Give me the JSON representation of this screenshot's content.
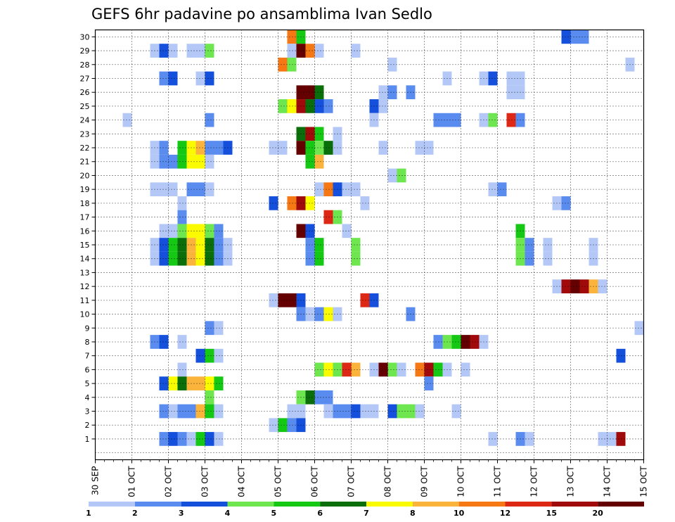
{
  "chart_data": {
    "type": "heatmap",
    "title": "GEFS 6hr padavine po ansamblima Ivan Sedlo",
    "ylabels": [
      "1",
      "2",
      "3",
      "4",
      "5",
      "6",
      "7",
      "8",
      "9",
      "10",
      "11",
      "12",
      "13",
      "14",
      "15",
      "16",
      "17",
      "18",
      "19",
      "20",
      "21",
      "22",
      "23",
      "24",
      "25",
      "26",
      "27",
      "28",
      "29",
      "30"
    ],
    "xlabels": [
      "30 SEP",
      "01 OCT",
      "02 OCT",
      "03 OCT",
      "04 OCT",
      "05 OCT",
      "06 OCT",
      "07 OCT",
      "08 OCT",
      "09 OCT",
      "10 OCT",
      "11 OCT",
      "12 OCT",
      "13 OCT",
      "14 OCT",
      "15 OCT"
    ],
    "x_steps": 60,
    "y_rows": 31,
    "legend": {
      "labels": [
        "1",
        "2",
        "3",
        "4",
        "5",
        "6",
        "7",
        "8",
        "10",
        "12",
        "15",
        "20"
      ],
      "colors": [
        "#b4c8f8",
        "#5a8cf0",
        "#1450dc",
        "#6ee650",
        "#14c814",
        "#0a6e0a",
        "#fafa00",
        "#fab43c",
        "#f57814",
        "#dc2814",
        "#a00a0a",
        "#640000"
      ]
    },
    "colors": [
      "#b4c8f8",
      "#5a8cf0",
      "#1450dc",
      "#6ee650",
      "#14c814",
      "#0a6e0a",
      "#fafa00",
      "#fab43c",
      "#f57814",
      "#dc2814",
      "#a00a0a",
      "#640000"
    ],
    "cells": [
      [
        30,
        21,
        8
      ],
      [
        30,
        22,
        4
      ],
      [
        30,
        51,
        2
      ],
      [
        30,
        52,
        1
      ],
      [
        30,
        53,
        1
      ],
      [
        29,
        6,
        0
      ],
      [
        29,
        7,
        2
      ],
      [
        29,
        8,
        0
      ],
      [
        29,
        10,
        0
      ],
      [
        29,
        11,
        0
      ],
      [
        29,
        12,
        3
      ],
      [
        29,
        21,
        0
      ],
      [
        29,
        22,
        11
      ],
      [
        29,
        23,
        8
      ],
      [
        29,
        24,
        0
      ],
      [
        29,
        28,
        0
      ],
      [
        28,
        20,
        8
      ],
      [
        28,
        21,
        3
      ],
      [
        28,
        32,
        0
      ],
      [
        28,
        58,
        0
      ],
      [
        27,
        7,
        1
      ],
      [
        27,
        8,
        2
      ],
      [
        27,
        11,
        0
      ],
      [
        27,
        12,
        2
      ],
      [
        27,
        38,
        0
      ],
      [
        27,
        42,
        0
      ],
      [
        27,
        43,
        2
      ],
      [
        27,
        45,
        0
      ],
      [
        27,
        46,
        0
      ],
      [
        26,
        22,
        11
      ],
      [
        26,
        23,
        11
      ],
      [
        26,
        24,
        5
      ],
      [
        26,
        31,
        0
      ],
      [
        26,
        32,
        1
      ],
      [
        26,
        34,
        1
      ],
      [
        26,
        45,
        0
      ],
      [
        26,
        46,
        0
      ],
      [
        25,
        20,
        3
      ],
      [
        25,
        21,
        6
      ],
      [
        25,
        22,
        10
      ],
      [
        25,
        23,
        5
      ],
      [
        25,
        24,
        2
      ],
      [
        25,
        25,
        1
      ],
      [
        25,
        30,
        2
      ],
      [
        25,
        31,
        0
      ],
      [
        24,
        3,
        0
      ],
      [
        24,
        12,
        1
      ],
      [
        24,
        37,
        1
      ],
      [
        24,
        38,
        1
      ],
      [
        24,
        39,
        1
      ],
      [
        24,
        42,
        0
      ],
      [
        24,
        43,
        3
      ],
      [
        24,
        45,
        9
      ],
      [
        24,
        46,
        1
      ],
      [
        24,
        30,
        0
      ],
      [
        23,
        22,
        5
      ],
      [
        23,
        23,
        10
      ],
      [
        23,
        24,
        4
      ],
      [
        23,
        26,
        0
      ],
      [
        22,
        6,
        0
      ],
      [
        22,
        7,
        1
      ],
      [
        22,
        9,
        4
      ],
      [
        22,
        10,
        6
      ],
      [
        22,
        11,
        7
      ],
      [
        22,
        12,
        1
      ],
      [
        22,
        13,
        1
      ],
      [
        22,
        14,
        2
      ],
      [
        22,
        19,
        0
      ],
      [
        22,
        20,
        0
      ],
      [
        22,
        22,
        11
      ],
      [
        22,
        23,
        4
      ],
      [
        22,
        24,
        3
      ],
      [
        22,
        25,
        5
      ],
      [
        22,
        26,
        0
      ],
      [
        22,
        31,
        0
      ],
      [
        22,
        35,
        0
      ],
      [
        22,
        36,
        0
      ],
      [
        21,
        6,
        0
      ],
      [
        21,
        7,
        1
      ],
      [
        21,
        8,
        1
      ],
      [
        21,
        9,
        4
      ],
      [
        21,
        10,
        6
      ],
      [
        21,
        11,
        6
      ],
      [
        21,
        12,
        0
      ],
      [
        21,
        23,
        4
      ],
      [
        21,
        24,
        7
      ],
      [
        20,
        32,
        0
      ],
      [
        20,
        33,
        3
      ],
      [
        19,
        6,
        0
      ],
      [
        19,
        7,
        0
      ],
      [
        19,
        8,
        0
      ],
      [
        19,
        10,
        1
      ],
      [
        19,
        11,
        1
      ],
      [
        19,
        12,
        0
      ],
      [
        19,
        24,
        0
      ],
      [
        19,
        25,
        8
      ],
      [
        19,
        26,
        2
      ],
      [
        19,
        27,
        0
      ],
      [
        19,
        28,
        0
      ],
      [
        19,
        43,
        0
      ],
      [
        19,
        44,
        1
      ],
      [
        18,
        9,
        0
      ],
      [
        18,
        19,
        2
      ],
      [
        18,
        21,
        8
      ],
      [
        18,
        22,
        10
      ],
      [
        18,
        23,
        6
      ],
      [
        18,
        29,
        0
      ],
      [
        18,
        50,
        0
      ],
      [
        18,
        51,
        1
      ],
      [
        17,
        9,
        1
      ],
      [
        17,
        25,
        9
      ],
      [
        17,
        26,
        3
      ],
      [
        16,
        7,
        0
      ],
      [
        16,
        8,
        0
      ],
      [
        16,
        9,
        3
      ],
      [
        16,
        10,
        6
      ],
      [
        16,
        11,
        6
      ],
      [
        16,
        12,
        3
      ],
      [
        16,
        13,
        1
      ],
      [
        16,
        22,
        11
      ],
      [
        16,
        23,
        2
      ],
      [
        16,
        27,
        0
      ],
      [
        16,
        46,
        4
      ],
      [
        15,
        6,
        0
      ],
      [
        15,
        7,
        2
      ],
      [
        15,
        8,
        4
      ],
      [
        15,
        9,
        5
      ],
      [
        15,
        10,
        7
      ],
      [
        15,
        11,
        6
      ],
      [
        15,
        12,
        5
      ],
      [
        15,
        13,
        1
      ],
      [
        15,
        14,
        0
      ],
      [
        15,
        23,
        1
      ],
      [
        15,
        24,
        4
      ],
      [
        15,
        28,
        3
      ],
      [
        15,
        46,
        3
      ],
      [
        15,
        47,
        1
      ],
      [
        15,
        49,
        0
      ],
      [
        15,
        54,
        0
      ],
      [
        12,
        50,
        0
      ],
      [
        12,
        51,
        10
      ],
      [
        12,
        52,
        11
      ],
      [
        12,
        53,
        10
      ],
      [
        12,
        54,
        7
      ],
      [
        12,
        55,
        0
      ],
      [
        11,
        19,
        0
      ],
      [
        11,
        20,
        11
      ],
      [
        11,
        21,
        11
      ],
      [
        11,
        22,
        2
      ],
      [
        11,
        29,
        9
      ],
      [
        11,
        30,
        2
      ],
      [
        10,
        22,
        1
      ],
      [
        10,
        23,
        0
      ],
      [
        10,
        24,
        1
      ],
      [
        10,
        25,
        6
      ],
      [
        10,
        26,
        0
      ],
      [
        10,
        34,
        1
      ],
      [
        9,
        12,
        1
      ],
      [
        9,
        13,
        0
      ],
      [
        9,
        59,
        0
      ],
      [
        8,
        6,
        1
      ],
      [
        8,
        7,
        2
      ],
      [
        8,
        9,
        0
      ],
      [
        8,
        37,
        1
      ],
      [
        8,
        38,
        3
      ],
      [
        8,
        39,
        4
      ],
      [
        8,
        40,
        11
      ],
      [
        8,
        41,
        10
      ],
      [
        8,
        42,
        0
      ],
      [
        7,
        11,
        2
      ],
      [
        7,
        12,
        4
      ],
      [
        7,
        13,
        0
      ],
      [
        7,
        57,
        2
      ],
      [
        6,
        9,
        0
      ],
      [
        6,
        24,
        3
      ],
      [
        6,
        25,
        6
      ],
      [
        6,
        26,
        3
      ],
      [
        6,
        27,
        9
      ],
      [
        6,
        28,
        7
      ],
      [
        6,
        30,
        0
      ],
      [
        6,
        31,
        11
      ],
      [
        6,
        32,
        3
      ],
      [
        6,
        33,
        0
      ],
      [
        6,
        35,
        8
      ],
      [
        6,
        36,
        10
      ],
      [
        6,
        37,
        4
      ],
      [
        6,
        38,
        0
      ],
      [
        6,
        40,
        0
      ],
      [
        5,
        7,
        2
      ],
      [
        5,
        8,
        6
      ],
      [
        5,
        9,
        5
      ],
      [
        5,
        10,
        7
      ],
      [
        5,
        11,
        7
      ],
      [
        5,
        12,
        6
      ],
      [
        5,
        13,
        4
      ],
      [
        5,
        36,
        1
      ],
      [
        4,
        12,
        3
      ],
      [
        4,
        22,
        3
      ],
      [
        4,
        23,
        5
      ],
      [
        4,
        24,
        1
      ],
      [
        4,
        25,
        1
      ],
      [
        3,
        7,
        1
      ],
      [
        3,
        8,
        0
      ],
      [
        3,
        9,
        1
      ],
      [
        3,
        10,
        1
      ],
      [
        3,
        11,
        7
      ],
      [
        3,
        12,
        4
      ],
      [
        3,
        13,
        0
      ],
      [
        3,
        21,
        0
      ],
      [
        3,
        22,
        0
      ],
      [
        3,
        25,
        0
      ],
      [
        3,
        26,
        1
      ],
      [
        3,
        27,
        1
      ],
      [
        3,
        28,
        2
      ],
      [
        3,
        29,
        0
      ],
      [
        3,
        30,
        0
      ],
      [
        3,
        32,
        2
      ],
      [
        3,
        33,
        3
      ],
      [
        3,
        34,
        3
      ],
      [
        3,
        35,
        0
      ],
      [
        3,
        39,
        0
      ],
      [
        2,
        19,
        0
      ],
      [
        2,
        20,
        4
      ],
      [
        2,
        21,
        1
      ],
      [
        2,
        22,
        2
      ],
      [
        1,
        7,
        1
      ],
      [
        1,
        8,
        2
      ],
      [
        1,
        9,
        1
      ],
      [
        1,
        10,
        0
      ],
      [
        1,
        11,
        4
      ],
      [
        1,
        12,
        2
      ],
      [
        1,
        13,
        0
      ],
      [
        1,
        43,
        0
      ],
      [
        1,
        46,
        1
      ],
      [
        1,
        47,
        0
      ],
      [
        1,
        55,
        0
      ],
      [
        1,
        56,
        0
      ],
      [
        1,
        57,
        10
      ],
      [
        14,
        6,
        0
      ],
      [
        14,
        7,
        2
      ],
      [
        14,
        8,
        4
      ],
      [
        14,
        9,
        5
      ],
      [
        14,
        10,
        7
      ],
      [
        14,
        11,
        6
      ],
      [
        14,
        12,
        5
      ],
      [
        14,
        13,
        1
      ],
      [
        14,
        14,
        0
      ],
      [
        14,
        23,
        1
      ],
      [
        14,
        24,
        4
      ],
      [
        14,
        28,
        3
      ],
      [
        14,
        46,
        3
      ],
      [
        14,
        47,
        1
      ],
      [
        14,
        49,
        0
      ],
      [
        14,
        54,
        0
      ]
    ],
    "xlabel": "",
    "ylabel": ""
  }
}
